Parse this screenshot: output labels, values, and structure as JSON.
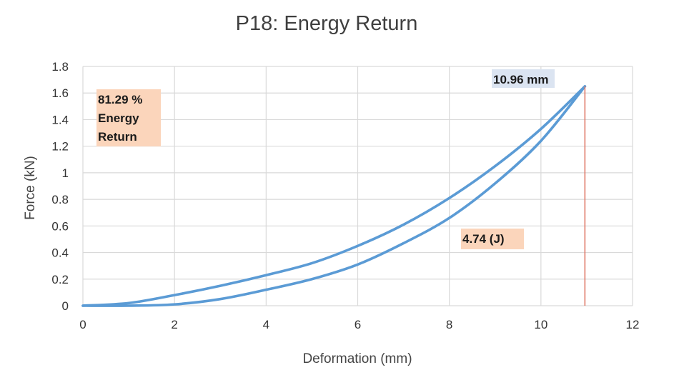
{
  "chart_data": {
    "type": "line",
    "title": "P18: Energy Return",
    "xlabel": "Deformation (mm)",
    "ylabel": "Force (kN)",
    "xlim": [
      0,
      12
    ],
    "ylim": [
      0,
      1.8
    ],
    "x_ticks": [
      "0",
      "2",
      "4",
      "6",
      "8",
      "10",
      "12"
    ],
    "y_ticks": [
      "0",
      "0.2",
      "0.4",
      "0.6",
      "0.8",
      "1",
      "1.2",
      "1.4",
      "1.6",
      "1.8"
    ],
    "grid": true,
    "legend": "none",
    "series": [
      {
        "color": "#5b9bd5",
        "points": [
          [
            0,
            0
          ],
          [
            1,
            0.02
          ],
          [
            2,
            0.08
          ],
          [
            3,
            0.15
          ],
          [
            4,
            0.23
          ],
          [
            5,
            0.32
          ],
          [
            6,
            0.45
          ],
          [
            7,
            0.61
          ],
          [
            8,
            0.81
          ],
          [
            9,
            1.05
          ],
          [
            10,
            1.33
          ],
          [
            10.96,
            1.65
          ]
        ]
      },
      {
        "color": "#5b9bd5",
        "points": [
          [
            10.96,
            1.65
          ],
          [
            10,
            1.24
          ],
          [
            9,
            0.92
          ],
          [
            8,
            0.66
          ],
          [
            7,
            0.47
          ],
          [
            6,
            0.31
          ],
          [
            5,
            0.2
          ],
          [
            4,
            0.12
          ],
          [
            3,
            0.05
          ],
          [
            2,
            0.01
          ],
          [
            1,
            0
          ],
          [
            0,
            0
          ]
        ]
      }
    ],
    "vertical_line": {
      "x": 10.96,
      "y": 1.65,
      "color": "#e07a6a"
    },
    "annotations": [
      {
        "lines": [
          "81.29 %",
          "Energy",
          "Return"
        ],
        "bg": "#fbd5bb"
      },
      {
        "lines": [
          "10.96 mm"
        ],
        "bg": "#dbe4f1"
      },
      {
        "lines": [
          "4.74 (J)"
        ],
        "bg": "#fbd5bb"
      }
    ]
  }
}
